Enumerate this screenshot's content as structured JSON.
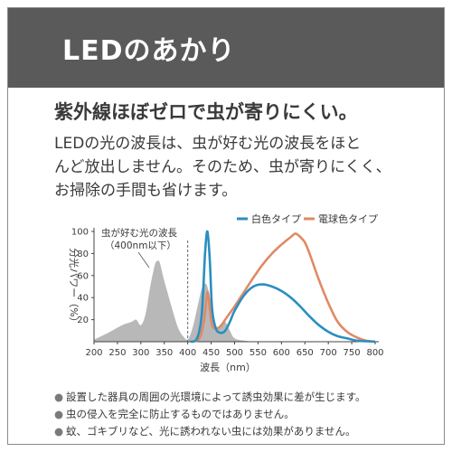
{
  "header": {
    "title": "LEDのあかり"
  },
  "headline": "紫外線ほぼゼロで虫が寄りにくい。",
  "body_lines": [
    "LEDの光の波長は、虫が好む光の波長をほと",
    "んど放出しません。そのため、虫が寄りにくく、",
    "お掃除の手間も省けます。"
  ],
  "notes": [
    "設置した器具の周囲の光環境によって誘虫効果に差が生じます。",
    "虫の侵入を完全に防止するものではありません。",
    "蚊、ゴキブリなど、光に誘われない虫には効果がありません。"
  ],
  "colors": {
    "header_bg": "#5a5a5a",
    "daylight": "#2a8fc0",
    "bulb": "#e08a66",
    "insect": "#b8b8b8"
  },
  "chart_data": {
    "type": "line",
    "xlabel": "波長（nm）",
    "ylabel": "分光パワー（%）",
    "xlim": [
      200,
      800
    ],
    "ylim": [
      0,
      100
    ],
    "xticks": [
      "200",
      "250",
      "300",
      "350",
      "400",
      "450",
      "500",
      "550",
      "600",
      "650",
      "700",
      "750",
      "800"
    ],
    "yticks": [
      "20",
      "40",
      "60",
      "80",
      "100"
    ],
    "annotation": [
      "虫が好む光の波長",
      "（400nm以下）"
    ],
    "insect_band_label": "虫が好む光の波長",
    "series": [
      {
        "name": "白色タイプ",
        "color": "#2a8fc0",
        "x": [
          405,
          420,
          430,
          437,
          442,
          447,
          452,
          460,
          470,
          480,
          490,
          500,
          520,
          540,
          560,
          580,
          600,
          620,
          640,
          660,
          680,
          700,
          720,
          740,
          760,
          780,
          800
        ],
        "y": [
          0,
          3,
          25,
          80,
          100,
          75,
          30,
          12,
          8,
          10,
          18,
          28,
          42,
          50,
          52,
          50,
          46,
          40,
          32,
          23,
          15,
          9,
          5,
          3,
          1,
          0.5,
          0
        ]
      },
      {
        "name": "電球色タイプ",
        "color": "#e08a66",
        "x": [
          405,
          425,
          435,
          442,
          447,
          452,
          460,
          470,
          480,
          490,
          500,
          520,
          540,
          560,
          580,
          600,
          620,
          630,
          640,
          650,
          660,
          680,
          700,
          720,
          740,
          760,
          780,
          800
        ],
        "y": [
          0,
          3,
          20,
          45,
          30,
          15,
          12,
          14,
          20,
          26,
          32,
          45,
          58,
          70,
          80,
          88,
          95,
          98,
          95,
          90,
          80,
          56,
          35,
          18,
          9,
          4,
          1,
          0
        ]
      },
      {
        "name": "虫が好む光の波長",
        "color": "#b8b8b8",
        "x": [
          200,
          230,
          260,
          280,
          290,
          300,
          310,
          320,
          330,
          335,
          340,
          350,
          360,
          370,
          380,
          390,
          400,
          410,
          420,
          430,
          440,
          450,
          460,
          470,
          480,
          490,
          500,
          520,
          540
        ],
        "y": [
          2,
          8,
          15,
          18,
          20,
          15,
          25,
          50,
          70,
          73,
          72,
          55,
          40,
          25,
          12,
          5,
          2,
          12,
          30,
          48,
          52,
          35,
          12,
          16,
          18,
          10,
          3,
          1,
          0
        ]
      }
    ]
  }
}
